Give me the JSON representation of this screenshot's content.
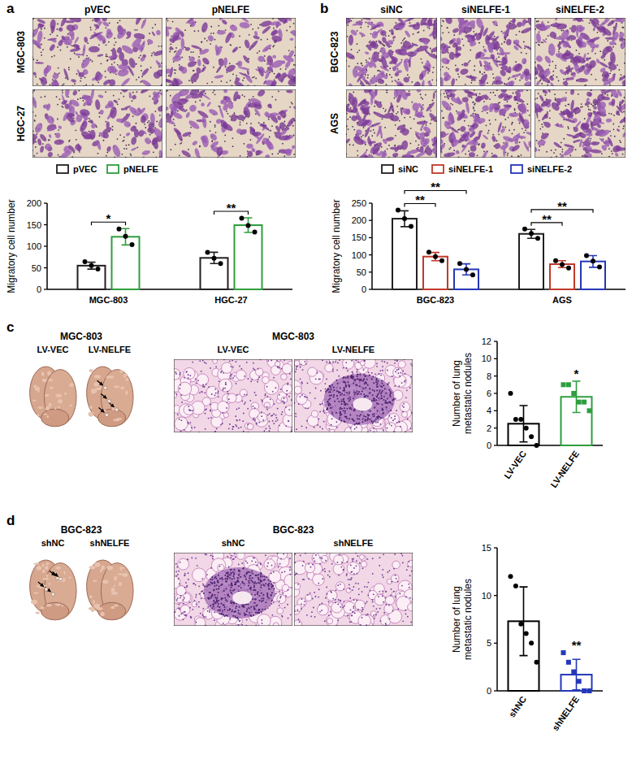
{
  "panel_labels": [
    "a",
    "b",
    "c",
    "d"
  ],
  "images": [
    {
      "columns": [
        "pVEC",
        "pNELFE"
      ],
      "rows": [
        "MGC-803",
        "HGC-27"
      ]
    },
    {
      "columns": [
        "siNC",
        "siNELFE-1",
        "siNELFE-2"
      ],
      "rows": [
        "BGC-823",
        "AGS"
      ]
    },
    {
      "cell_line": "MGC-803",
      "columns": [
        "LV-VEC",
        "LV-NELFE"
      ]
    },
    {
      "cell_line": "BGC-823",
      "columns": [
        "shNC",
        "shNELFE"
      ]
    }
  ],
  "chart_data": [
    {
      "type": "bar",
      "y_label": "Migratory cell number",
      "categories": [
        "MGC-803",
        "HGC-27"
      ],
      "series": [
        {
          "name": "pVEC",
          "color": "#231f20",
          "values": [
            55,
            73
          ],
          "errors": [
            8,
            13
          ],
          "points": [
            [
              64,
              55,
              47
            ],
            [
              86,
              72,
              60
            ]
          ]
        },
        {
          "name": "pNELFE",
          "color": "#2e9e3e",
          "values": [
            122,
            149
          ],
          "errors": [
            19,
            17
          ],
          "points": [
            [
              140,
              123,
              104
            ],
            [
              165,
              148,
              133
            ]
          ]
        }
      ],
      "ylim": [
        0,
        200
      ],
      "yticks": [
        0,
        50,
        100,
        150,
        200
      ],
      "legend": "top",
      "significance": [
        {
          "category": 0,
          "series": [
            0,
            1
          ],
          "label": "*"
        },
        {
          "category": 1,
          "series": [
            0,
            1
          ],
          "label": "**"
        }
      ]
    },
    {
      "type": "bar",
      "y_label": "Migratory cell number",
      "categories": [
        "BGC-823",
        "AGS"
      ],
      "series": [
        {
          "name": "siNC",
          "color": "#231f20",
          "values": [
            205,
            161
          ],
          "errors": [
            23,
            13
          ],
          "points": [
            [
              230,
              205,
              183
            ],
            [
              175,
              162,
              148
            ]
          ]
        },
        {
          "name": "siNELFE-1",
          "color": "#c0392b",
          "values": [
            95,
            73
          ],
          "errors": [
            12,
            10
          ],
          "points": [
            [
              108,
              95,
              83
            ],
            [
              83,
              72,
              62
            ]
          ]
        },
        {
          "name": "siNELFE-2",
          "color": "#2438b8",
          "values": [
            58,
            81
          ],
          "errors": [
            16,
            17
          ],
          "points": [
            [
              75,
              58,
              42
            ],
            [
              98,
              82,
              65
            ]
          ]
        }
      ],
      "ylim": [
        0,
        250
      ],
      "yticks": [
        0,
        50,
        100,
        150,
        200,
        250
      ],
      "legend": "top",
      "significance": [
        {
          "category": 0,
          "series": [
            0,
            1
          ],
          "label": "**"
        },
        {
          "category": 0,
          "series": [
            0,
            2
          ],
          "label": "**"
        },
        {
          "category": 1,
          "series": [
            0,
            1
          ],
          "label": "**"
        },
        {
          "category": 1,
          "series": [
            0,
            2
          ],
          "label": "**"
        }
      ]
    },
    {
      "type": "bar",
      "y_label": "Number of lung metastatic nodules",
      "categories": [
        "LV-VEC",
        "LV-NELFE"
      ],
      "series": [
        {
          "color": "#000000",
          "marker": "circle",
          "values": [
            2.5,
            null
          ],
          "errors": [
            2.1,
            null
          ],
          "points": [
            [
              6,
              3,
              3,
              2,
              1,
              0
            ],
            null
          ]
        },
        {
          "color": "#2e9e3e",
          "marker": "square",
          "values": [
            null,
            5.6
          ],
          "errors": [
            null,
            1.8
          ],
          "points": [
            null,
            [
              7,
              7,
              6,
              5,
              5,
              4
            ]
          ]
        }
      ],
      "ylim": [
        0,
        12
      ],
      "yticks": [
        0,
        2,
        4,
        6,
        8,
        10,
        12
      ],
      "significance": [
        {
          "category": 1,
          "series": [
            1
          ],
          "label": "*"
        }
      ]
    },
    {
      "type": "bar",
      "y_label": "Number of lung metastatic nodules",
      "categories": [
        "shNC",
        "shNELFE"
      ],
      "series": [
        {
          "color": "#000000",
          "marker": "circle",
          "values": [
            7.3,
            null
          ],
          "errors": [
            3.6,
            null
          ],
          "points": [
            [
              12,
              11,
              7,
              6,
              5,
              3
            ],
            null
          ]
        },
        {
          "color": "#2438b8",
          "marker": "square",
          "values": [
            null,
            1.7
          ],
          "errors": [
            null,
            1.6
          ],
          "points": [
            null,
            [
              4,
              3,
              2,
              1,
              0,
              0
            ]
          ]
        }
      ],
      "ylim": [
        0,
        15
      ],
      "yticks": [
        0,
        5,
        10,
        15
      ],
      "significance": [
        {
          "category": 1,
          "series": [
            1
          ],
          "label": "**"
        }
      ]
    }
  ]
}
